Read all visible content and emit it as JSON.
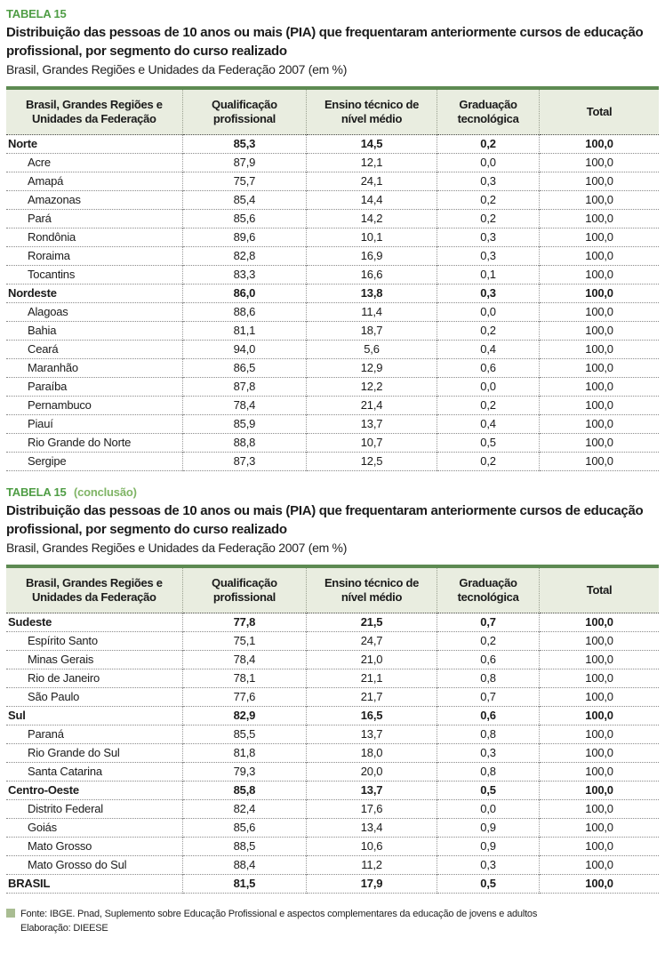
{
  "colors": {
    "tag_green": "#4f9d45",
    "tag_note_green": "#7fb465",
    "table_top_border_green": "#5d8a52",
    "header_row_bg": "#e9ede0",
    "legend_square_green": "#a9bd92"
  },
  "columns": [
    {
      "l1": "Brasil, Grandes Regiões e",
      "l2": "Unidades da Federação"
    },
    {
      "l1": "Qualificação",
      "l2": "profissional"
    },
    {
      "l1": "Ensino técnico de",
      "l2": "nível médio"
    },
    {
      "l1": "Graduação",
      "l2": "tecnológica"
    },
    {
      "l1": "Total",
      "l2": ""
    }
  ],
  "table1": {
    "tag": "TABELA 15",
    "tag_note": "",
    "title": "Distribuição das pessoas de 10 anos ou mais (PIA) que frequentaram anteriormente cursos de educação profissional, por segmento do curso realizado",
    "subtitle": "Brasil, Grandes Regiões e Unidades da Federação 2007 (em %)",
    "rows": [
      {
        "name": "Norte",
        "level": "region",
        "values": [
          "85,3",
          "14,5",
          "0,2",
          "100,0"
        ]
      },
      {
        "name": "Acre",
        "level": "state",
        "values": [
          "87,9",
          "12,1",
          "0,0",
          "100,0"
        ]
      },
      {
        "name": "Amapá",
        "level": "state",
        "values": [
          "75,7",
          "24,1",
          "0,3",
          "100,0"
        ]
      },
      {
        "name": "Amazonas",
        "level": "state",
        "values": [
          "85,4",
          "14,4",
          "0,2",
          "100,0"
        ]
      },
      {
        "name": "Pará",
        "level": "state",
        "values": [
          "85,6",
          "14,2",
          "0,2",
          "100,0"
        ]
      },
      {
        "name": "Rondônia",
        "level": "state",
        "values": [
          "89,6",
          "10,1",
          "0,3",
          "100,0"
        ]
      },
      {
        "name": "Roraima",
        "level": "state",
        "values": [
          "82,8",
          "16,9",
          "0,3",
          "100,0"
        ]
      },
      {
        "name": "Tocantins",
        "level": "state",
        "values": [
          "83,3",
          "16,6",
          "0,1",
          "100,0"
        ]
      },
      {
        "name": "Nordeste",
        "level": "region",
        "values": [
          "86,0",
          "13,8",
          "0,3",
          "100,0"
        ]
      },
      {
        "name": "Alagoas",
        "level": "state",
        "values": [
          "88,6",
          "11,4",
          "0,0",
          "100,0"
        ]
      },
      {
        "name": "Bahia",
        "level": "state",
        "values": [
          "81,1",
          "18,7",
          "0,2",
          "100,0"
        ]
      },
      {
        "name": "Ceará",
        "level": "state",
        "values": [
          "94,0",
          "5,6",
          "0,4",
          "100,0"
        ]
      },
      {
        "name": "Maranhão",
        "level": "state",
        "values": [
          "86,5",
          "12,9",
          "0,6",
          "100,0"
        ]
      },
      {
        "name": "Paraíba",
        "level": "state",
        "values": [
          "87,8",
          "12,2",
          "0,0",
          "100,0"
        ]
      },
      {
        "name": "Pernambuco",
        "level": "state",
        "values": [
          "78,4",
          "21,4",
          "0,2",
          "100,0"
        ]
      },
      {
        "name": "Piauí",
        "level": "state",
        "values": [
          "85,9",
          "13,7",
          "0,4",
          "100,0"
        ]
      },
      {
        "name": "Rio Grande do Norte",
        "level": "state",
        "values": [
          "88,8",
          "10,7",
          "0,5",
          "100,0"
        ]
      },
      {
        "name": "Sergipe",
        "level": "state",
        "values": [
          "87,3",
          "12,5",
          "0,2",
          "100,0"
        ]
      }
    ]
  },
  "table2": {
    "tag": "TABELA 15",
    "tag_note": "(conclusão)",
    "title": "Distribuição das pessoas de 10 anos ou mais (PIA) que frequentaram anteriormente cursos de educação profissional, por segmento do curso realizado",
    "subtitle": "Brasil, Grandes Regiões e Unidades da Federação 2007 (em %)",
    "rows": [
      {
        "name": "Sudeste",
        "level": "region",
        "values": [
          "77,8",
          "21,5",
          "0,7",
          "100,0"
        ]
      },
      {
        "name": "Espírito Santo",
        "level": "state",
        "values": [
          "75,1",
          "24,7",
          "0,2",
          "100,0"
        ]
      },
      {
        "name": "Minas Gerais",
        "level": "state",
        "values": [
          "78,4",
          "21,0",
          "0,6",
          "100,0"
        ]
      },
      {
        "name": "Rio de Janeiro",
        "level": "state",
        "values": [
          "78,1",
          "21,1",
          "0,8",
          "100,0"
        ]
      },
      {
        "name": "São Paulo",
        "level": "state",
        "values": [
          "77,6",
          "21,7",
          "0,7",
          "100,0"
        ]
      },
      {
        "name": "Sul",
        "level": "region",
        "values": [
          "82,9",
          "16,5",
          "0,6",
          "100,0"
        ]
      },
      {
        "name": "Paraná",
        "level": "state",
        "values": [
          "85,5",
          "13,7",
          "0,8",
          "100,0"
        ]
      },
      {
        "name": "Rio Grande do Sul",
        "level": "state",
        "values": [
          "81,8",
          "18,0",
          "0,3",
          "100,0"
        ]
      },
      {
        "name": "Santa Catarina",
        "level": "state",
        "values": [
          "79,3",
          "20,0",
          "0,8",
          "100,0"
        ]
      },
      {
        "name": "Centro-Oeste",
        "level": "region",
        "values": [
          "85,8",
          "13,7",
          "0,5",
          "100,0"
        ]
      },
      {
        "name": "Distrito Federal",
        "level": "state",
        "values": [
          "82,4",
          "17,6",
          "0,0",
          "100,0"
        ]
      },
      {
        "name": "Goiás",
        "level": "state",
        "values": [
          "85,6",
          "13,4",
          "0,9",
          "100,0"
        ]
      },
      {
        "name": "Mato Grosso",
        "level": "state",
        "values": [
          "88,5",
          "10,6",
          "0,9",
          "100,0"
        ]
      },
      {
        "name": "Mato Grosso do Sul",
        "level": "state",
        "values": [
          "88,4",
          "11,2",
          "0,3",
          "100,0"
        ]
      },
      {
        "name": "BRASIL",
        "level": "country",
        "values": [
          "81,5",
          "17,9",
          "0,5",
          "100,0"
        ]
      }
    ]
  },
  "footer": {
    "fonte": "Fonte: IBGE. Pnad, Suplemento sobre Educação Profissional e aspectos complementares da educação de jovens e adultos",
    "elaboracao": "Elaboração: DIEESE"
  }
}
